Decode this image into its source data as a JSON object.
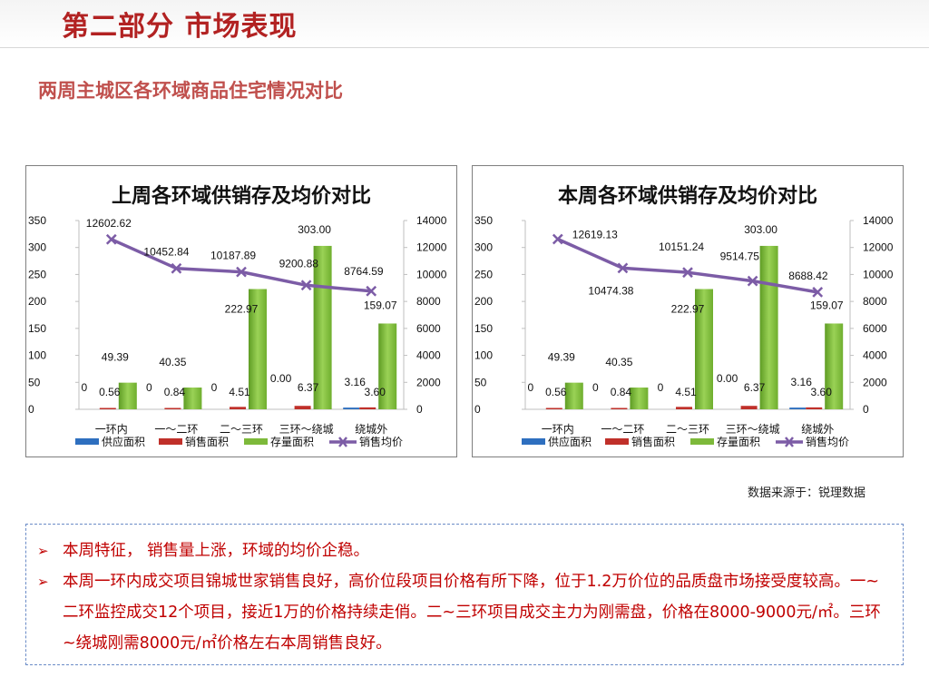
{
  "header": {
    "page_title": "第二部分 市场表现",
    "section_title": "两周主城区各环域商品住宅情况对比"
  },
  "colors": {
    "title_red": "#b22222",
    "subtitle_red": "#c0504d",
    "supply_blue": "#2e6fbf",
    "sales_red": "#c0302a",
    "stock_green": "#7db93a",
    "price_purple": "#7c5ca6",
    "text_red": "#c00000"
  },
  "chart_data": [
    {
      "type": "bar",
      "title": "上周各环域供销存及均价对比",
      "categories": [
        "一环内",
        "一～二环",
        "二～三环",
        "三环～绕城",
        "绕城外"
      ],
      "series": [
        {
          "name": "供应面积",
          "kind": "bar",
          "axis": "left",
          "values": [
            0,
            0,
            0,
            0.0,
            3.16
          ],
          "labels": [
            "0",
            "0",
            "0",
            "0.00",
            "3.16"
          ]
        },
        {
          "name": "销售面积",
          "kind": "bar",
          "axis": "left",
          "values": [
            0.56,
            0.84,
            4.51,
            6.37,
            3.6
          ],
          "labels": [
            "0.56",
            "0.84",
            "4.51",
            "6.37",
            "3.60"
          ]
        },
        {
          "name": "存量面积",
          "kind": "bar",
          "axis": "left",
          "values": [
            49.39,
            40.35,
            222.97,
            303.0,
            159.07
          ],
          "labels": [
            "49.39",
            "40.35",
            "222.97",
            "303.00",
            "159.07"
          ]
        },
        {
          "name": "销售均价",
          "kind": "line",
          "axis": "right",
          "values": [
            12602.62,
            10452.84,
            10187.89,
            9200.88,
            8764.59
          ],
          "labels": [
            "12602.62",
            "10452.84",
            "10187.89",
            "9200.88",
            "8764.59"
          ]
        }
      ],
      "y_left": {
        "min": 0,
        "max": 350,
        "ticks": [
          "0",
          "50",
          "100",
          "150",
          "200",
          "250",
          "300",
          "350"
        ]
      },
      "y_right": {
        "min": 0,
        "max": 14000,
        "ticks": [
          "0",
          "2000",
          "4000",
          "6000",
          "8000",
          "10000",
          "12000",
          "14000"
        ]
      },
      "legend": "bottom",
      "grid": false
    },
    {
      "type": "bar",
      "title": "本周各环域供销存及均价对比",
      "categories": [
        "一环内",
        "一～二环",
        "二～三环",
        "三环～绕城",
        "绕城外"
      ],
      "series": [
        {
          "name": "供应面积",
          "kind": "bar",
          "axis": "left",
          "values": [
            0,
            0,
            0,
            0.0,
            3.16
          ],
          "labels": [
            "0",
            "0",
            "0",
            "0.00",
            "3.16"
          ]
        },
        {
          "name": "销售面积",
          "kind": "bar",
          "axis": "left",
          "values": [
            0.56,
            0.84,
            4.51,
            6.37,
            3.6
          ],
          "labels": [
            "0.56",
            "0.84",
            "4.51",
            "6.37",
            "3.60"
          ]
        },
        {
          "name": "存量面积",
          "kind": "bar",
          "axis": "left",
          "values": [
            49.39,
            40.35,
            222.97,
            303.0,
            159.07
          ],
          "labels": [
            "49.39",
            "40.35",
            "222.97",
            "303.00",
            "159.07"
          ]
        },
        {
          "name": "销售均价",
          "kind": "line",
          "axis": "right",
          "values": [
            12619.13,
            10474.38,
            10151.24,
            9514.75,
            8688.42
          ],
          "labels": [
            "12619.13",
            "10474.38",
            "10151.24",
            "9514.75",
            "8688.42"
          ]
        }
      ],
      "y_left": {
        "min": 0,
        "max": 350,
        "ticks": [
          "0",
          "50",
          "100",
          "150",
          "200",
          "250",
          "300",
          "350"
        ]
      },
      "y_right": {
        "min": 0,
        "max": 14000,
        "ticks": [
          "0",
          "2000",
          "4000",
          "6000",
          "8000",
          "10000",
          "12000",
          "14000"
        ]
      },
      "legend": "bottom",
      "grid": false
    }
  ],
  "source_note": "数据来源于：锐理数据",
  "summary": {
    "bullet_1": "本周特征， 销售量上涨，环域的均价企稳。",
    "bullet_2": "本周一环内成交项目锦城世家销售良好，高价位段项目价格有所下降，位于1.2万价位的品质盘市场接受度较高。一~二环监控成交12个项目，接近1万的价格持续走俏。二~三环项目成交主力为刚需盘，价格在8000-9000元/㎡。三环~绕城刚需8000元/㎡价格左右本周销售良好。"
  }
}
